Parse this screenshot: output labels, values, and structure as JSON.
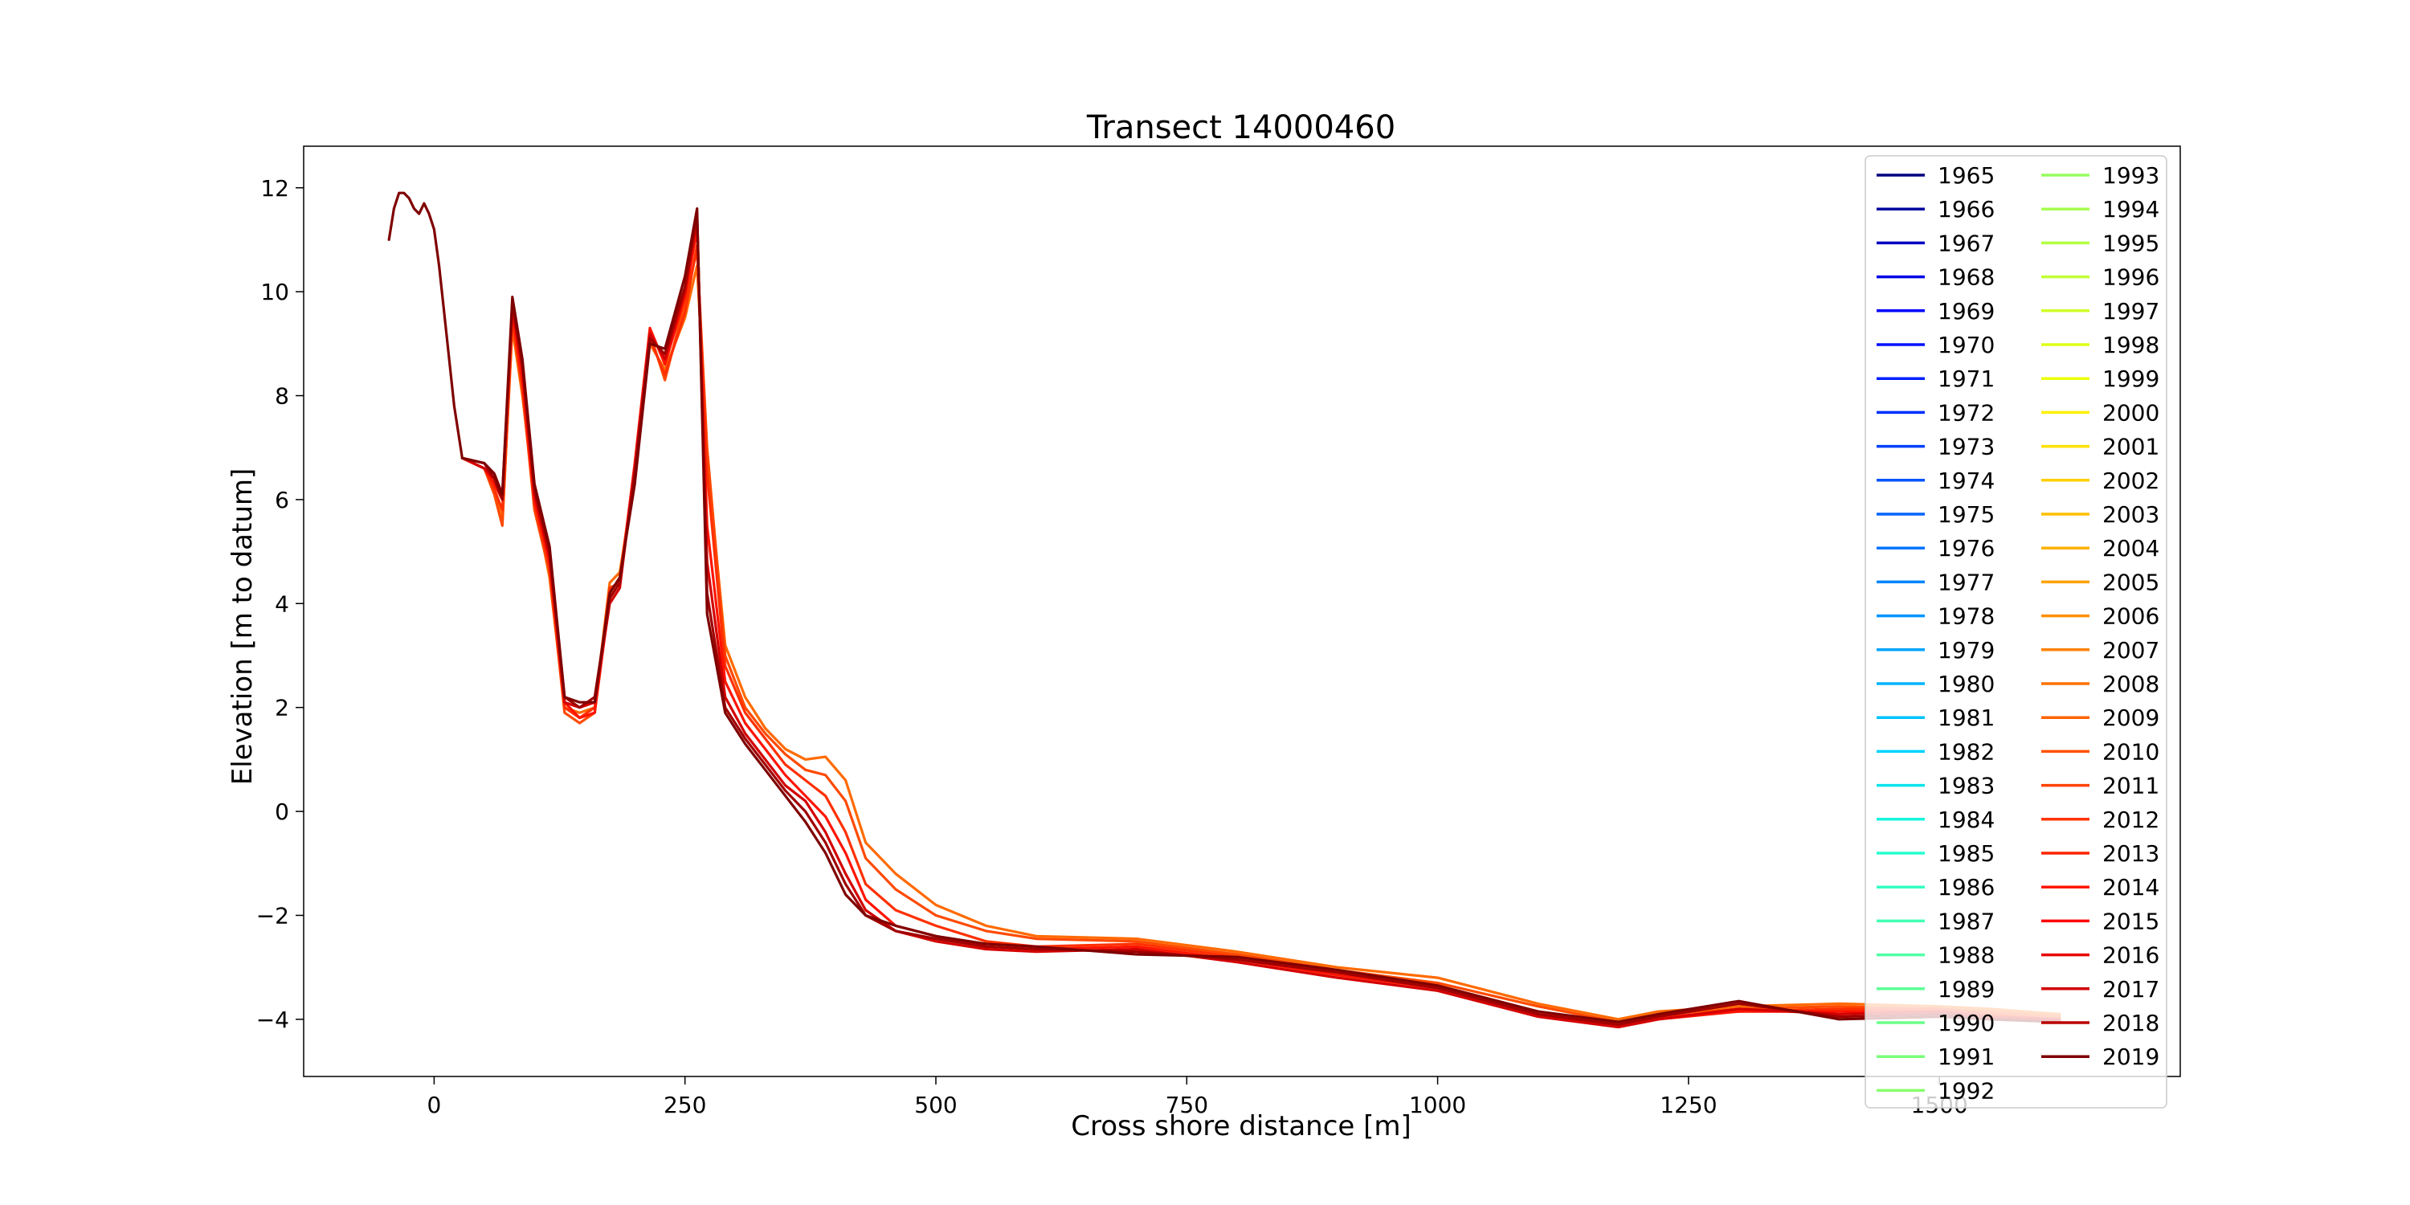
{
  "chart_data": {
    "type": "line",
    "title": "Transect 14000460",
    "xlabel": "Cross shore distance [m]",
    "ylabel": "Elevation [m to datum]",
    "xlim": [
      -130,
      1740
    ],
    "ylim": [
      -5.1,
      12.8
    ],
    "x_ticks": [
      0,
      250,
      500,
      750,
      1000,
      1250,
      1500
    ],
    "y_ticks": [
      -4,
      -2,
      0,
      2,
      4,
      6,
      8,
      10,
      12
    ],
    "x_tick_labels": [
      "0",
      "250",
      "500",
      "750",
      "1000",
      "1250",
      "1500"
    ],
    "y_tick_labels": [
      "−4",
      "−2",
      "0",
      "2",
      "4",
      "6",
      "8",
      "10",
      "12"
    ],
    "grid": false,
    "legend_position": "top-right",
    "legend_columns": 2,
    "legend_entries": [
      "1965",
      "1966",
      "1967",
      "1968",
      "1969",
      "1970",
      "1971",
      "1972",
      "1973",
      "1974",
      "1975",
      "1976",
      "1977",
      "1978",
      "1979",
      "1980",
      "1981",
      "1982",
      "1983",
      "1984",
      "1985",
      "1986",
      "1987",
      "1988",
      "1989",
      "1990",
      "1991",
      "1992",
      "1993",
      "1994",
      "1995",
      "1996",
      "1997",
      "1998",
      "1999",
      "2000",
      "2001",
      "2002",
      "2003",
      "2004",
      "2005",
      "2006",
      "2007",
      "2008",
      "2009",
      "2010",
      "2011",
      "2012",
      "2013",
      "2014",
      "2015",
      "2016",
      "2017",
      "2018",
      "2019"
    ],
    "legend_colors": [
      "#00007f",
      "#0000a0",
      "#0000c4",
      "#0000e8",
      "#0000ff",
      "#0010ff",
      "#0020ff",
      "#0030ff",
      "#0040ff",
      "#0054ff",
      "#0064ff",
      "#0074ff",
      "#0084ff",
      "#0094ff",
      "#00a4ff",
      "#00b4ff",
      "#00c4ff",
      "#00d4ff",
      "#0ae4ec",
      "#18f4de",
      "#26ffd0",
      "#34ffc2",
      "#42ffb3",
      "#50ffa5",
      "#5eff97",
      "#6cff89",
      "#7aff7a",
      "#89ff6c",
      "#97ff5e",
      "#a5ff50",
      "#b3ff42",
      "#c2ff34",
      "#d0ff26",
      "#deff18",
      "#ecff0a",
      "#fff000",
      "#ffe000",
      "#ffd000",
      "#ffc000",
      "#ffb100",
      "#ffa100",
      "#ff9100",
      "#ff8200",
      "#ff7200",
      "#ff6300",
      "#ff5300",
      "#ff4300",
      "#ff3400",
      "#ff2400",
      "#ff1500",
      "#ff0500",
      "#e80000",
      "#d10000",
      "#ba0000",
      "#7f0000"
    ],
    "series": [
      {
        "color": "#ff6a00",
        "x": [
          28,
          50,
          60,
          68,
          78,
          88,
          100,
          115,
          130,
          145,
          160,
          175,
          185,
          200,
          215,
          230,
          250,
          262,
          272,
          290,
          310,
          330,
          350,
          370,
          390,
          410,
          430,
          460,
          500,
          550,
          600,
          700,
          800,
          900,
          1000,
          1100,
          1180,
          1220,
          1300,
          1400,
          1500,
          1550,
          1620
        ],
        "y": [
          6.8,
          6.6,
          6.2,
          5.6,
          9.3,
          8.0,
          6.0,
          4.5,
          2.0,
          1.9,
          2.0,
          4.4,
          4.6,
          6.4,
          9.0,
          8.5,
          9.5,
          10.5,
          6.8,
          3.2,
          2.2,
          1.6,
          1.2,
          1.0,
          1.05,
          0.6,
          -0.6,
          -1.2,
          -1.8,
          -2.2,
          -2.4,
          -2.45,
          -2.7,
          -3.0,
          -3.2,
          -3.7,
          -4.0,
          -3.85,
          -3.75,
          -3.7,
          -3.75,
          -3.8,
          -3.9
        ]
      },
      {
        "color": "#ff4a00",
        "x": [
          28,
          50,
          60,
          68,
          78,
          88,
          100,
          115,
          130,
          145,
          160,
          175,
          185,
          200,
          215,
          230,
          250,
          262,
          272,
          290,
          310,
          330,
          350,
          370,
          390,
          410,
          430,
          460,
          500,
          550,
          600,
          700,
          800,
          900,
          1000,
          1100,
          1180,
          1220,
          1300,
          1400,
          1500,
          1550,
          1620
        ],
        "y": [
          6.8,
          6.6,
          6.1,
          5.5,
          9.4,
          8.1,
          5.8,
          4.6,
          1.9,
          1.7,
          1.9,
          4.2,
          4.5,
          6.6,
          9.2,
          8.3,
          9.8,
          10.8,
          7.0,
          3.0,
          2.0,
          1.5,
          1.1,
          0.8,
          0.7,
          0.2,
          -0.9,
          -1.5,
          -2.0,
          -2.3,
          -2.45,
          -2.5,
          -2.75,
          -3.05,
          -3.3,
          -3.75,
          -4.05,
          -3.9,
          -3.8,
          -3.75,
          -3.8,
          -3.85,
          -3.95
        ]
      },
      {
        "color": "#ff3000",
        "x": [
          28,
          50,
          60,
          68,
          78,
          88,
          100,
          115,
          130,
          145,
          160,
          175,
          185,
          200,
          215,
          230,
          250,
          262,
          272,
          290,
          310,
          330,
          350,
          370,
          390,
          410,
          430,
          460,
          500,
          550,
          600,
          700,
          800,
          900,
          1000,
          1100,
          1180,
          1220,
          1300,
          1400,
          1500,
          1550,
          1620
        ],
        "y": [
          6.8,
          6.6,
          6.2,
          5.8,
          9.5,
          8.2,
          5.9,
          4.7,
          2.0,
          1.8,
          2.0,
          4.3,
          4.4,
          6.5,
          9.1,
          8.4,
          9.6,
          10.9,
          6.5,
          2.8,
          1.9,
          1.4,
          0.9,
          0.6,
          0.3,
          -0.4,
          -1.4,
          -1.9,
          -2.2,
          -2.5,
          -2.6,
          -2.55,
          -2.8,
          -3.1,
          -3.35,
          -3.85,
          -4.1,
          -3.95,
          -3.85,
          -3.8,
          -3.8,
          -3.9,
          -4.0
        ]
      },
      {
        "color": "#ff1400",
        "x": [
          28,
          50,
          60,
          68,
          78,
          88,
          100,
          115,
          130,
          145,
          160,
          175,
          185,
          200,
          215,
          230,
          250,
          262,
          272,
          290,
          310,
          330,
          350,
          370,
          390,
          410,
          430,
          460,
          500,
          550,
          600,
          700,
          800,
          900,
          1000,
          1100,
          1180,
          1220,
          1300,
          1400,
          1500,
          1550,
          1620
        ],
        "y": [
          6.8,
          6.6,
          6.3,
          6.0,
          9.6,
          8.3,
          6.0,
          4.8,
          2.1,
          1.8,
          1.9,
          4.1,
          4.4,
          6.7,
          9.3,
          8.6,
          9.9,
          11.2,
          5.5,
          2.5,
          1.7,
          1.2,
          0.7,
          0.3,
          -0.1,
          -0.8,
          -1.7,
          -2.2,
          -2.4,
          -2.6,
          -2.65,
          -2.6,
          -2.85,
          -3.15,
          -3.4,
          -3.9,
          -4.15,
          -4.0,
          -3.85,
          -3.85,
          -3.85,
          -3.95,
          -4.05
        ]
      },
      {
        "color": "#d40000",
        "x": [
          28,
          50,
          60,
          68,
          78,
          88,
          100,
          115,
          130,
          145,
          160,
          175,
          185,
          200,
          215,
          230,
          250,
          262,
          272,
          290,
          310,
          330,
          350,
          370,
          390,
          410,
          430,
          460,
          500,
          550,
          600,
          700,
          800,
          900,
          1000,
          1100,
          1180,
          1220,
          1300,
          1400,
          1500,
          1550,
          1620
        ],
        "y": [
          6.8,
          6.6,
          6.4,
          6.1,
          9.7,
          8.5,
          6.1,
          4.9,
          2.1,
          2.0,
          2.1,
          4.0,
          4.3,
          6.6,
          9.2,
          8.7,
          10.0,
          11.4,
          4.8,
          2.2,
          1.5,
          1.0,
          0.5,
          0.2,
          -0.4,
          -1.2,
          -1.9,
          -2.3,
          -2.5,
          -2.65,
          -2.7,
          -2.65,
          -2.9,
          -3.2,
          -3.45,
          -3.95,
          -4.15,
          -4.0,
          -3.8,
          -3.9,
          -3.85,
          -3.95,
          -4.0
        ]
      },
      {
        "color": "#a00000",
        "x": [
          28,
          50,
          60,
          68,
          78,
          88,
          100,
          115,
          130,
          145,
          160,
          175,
          185,
          200,
          215,
          230,
          250,
          262,
          272,
          290,
          310,
          330,
          350,
          370,
          390,
          410,
          430,
          460,
          500,
          550,
          600,
          700,
          800,
          900,
          1000,
          1100,
          1180,
          1220,
          1300,
          1400,
          1500,
          1550,
          1620
        ],
        "y": [
          6.8,
          6.7,
          6.4,
          6.0,
          9.8,
          8.6,
          6.2,
          5.0,
          2.2,
          2.0,
          2.2,
          4.1,
          4.4,
          6.5,
          9.1,
          8.8,
          10.1,
          11.5,
          4.2,
          2.0,
          1.4,
          0.9,
          0.4,
          0.0,
          -0.6,
          -1.4,
          -2.0,
          -2.3,
          -2.45,
          -2.6,
          -2.65,
          -2.7,
          -2.85,
          -3.1,
          -3.4,
          -3.9,
          -4.1,
          -3.95,
          -3.7,
          -3.95,
          -3.9,
          -4.0,
          -4.05
        ]
      },
      {
        "color": "#7f0000",
        "x": [
          -45,
          -40,
          -35,
          -30,
          -25,
          -20,
          -15,
          -10,
          -5,
          0,
          5,
          10,
          20,
          28,
          50,
          60,
          68,
          78,
          88,
          100,
          115,
          130,
          145,
          160,
          175,
          185,
          200,
          215,
          230,
          250,
          262,
          272,
          290,
          310,
          330,
          350,
          370,
          390,
          410,
          430,
          460,
          500,
          550,
          600,
          700,
          800,
          900,
          1000,
          1100,
          1180,
          1220,
          1300,
          1400,
          1500,
          1550,
          1620
        ],
        "y": [
          11.0,
          11.6,
          11.9,
          11.9,
          11.8,
          11.6,
          11.5,
          11.7,
          11.5,
          11.2,
          10.5,
          9.6,
          7.8,
          6.8,
          6.7,
          6.5,
          6.1,
          9.9,
          8.7,
          6.3,
          5.1,
          2.2,
          2.1,
          2.1,
          4.2,
          4.5,
          6.3,
          9.0,
          8.9,
          10.3,
          11.6,
          3.8,
          1.9,
          1.3,
          0.8,
          0.3,
          -0.2,
          -0.8,
          -1.6,
          -2.0,
          -2.2,
          -2.4,
          -2.55,
          -2.6,
          -2.75,
          -2.8,
          -3.05,
          -3.35,
          -3.85,
          -4.05,
          -3.9,
          -3.65,
          -4.0,
          -3.95,
          -4.0,
          -4.05
        ]
      }
    ]
  }
}
